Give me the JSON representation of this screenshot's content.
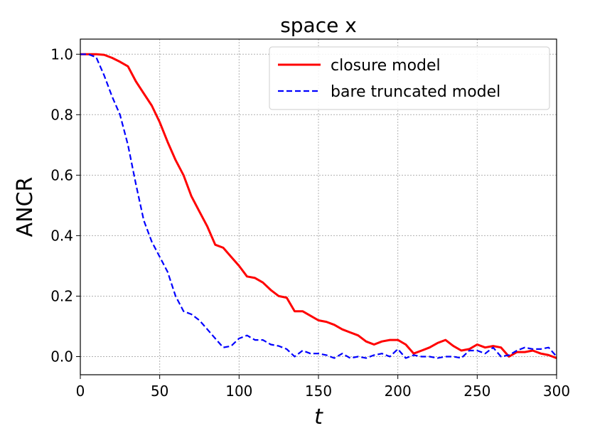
{
  "chart_data": {
    "type": "line",
    "title": "space x",
    "xlabel": "t",
    "ylabel": "ANCR",
    "xlim": [
      0,
      300
    ],
    "ylim": [
      -0.06,
      1.05
    ],
    "xticks": [
      0,
      50,
      100,
      150,
      200,
      250,
      300
    ],
    "yticks": [
      0.0,
      0.2,
      0.4,
      0.6,
      0.8,
      1.0
    ],
    "xtick_labels": [
      "0",
      "50",
      "100",
      "150",
      "200",
      "250",
      "300"
    ],
    "ytick_labels": [
      "0.0",
      "0.2",
      "0.4",
      "0.6",
      "0.8",
      "1.0"
    ],
    "grid": true,
    "legend_position": "top-right",
    "series": [
      {
        "name": "closure model",
        "color": "#ff0000",
        "style": "solid",
        "x": [
          0,
          5,
          10,
          15,
          20,
          25,
          30,
          35,
          40,
          45,
          50,
          55,
          60,
          65,
          70,
          75,
          80,
          85,
          90,
          95,
          100,
          105,
          110,
          115,
          120,
          125,
          130,
          135,
          140,
          145,
          150,
          155,
          160,
          165,
          170,
          175,
          180,
          185,
          190,
          195,
          200,
          205,
          210,
          215,
          220,
          225,
          230,
          235,
          240,
          245,
          250,
          255,
          260,
          265,
          270,
          275,
          280,
          285,
          290,
          295,
          300
        ],
        "values": [
          1.0,
          1.0,
          1.0,
          0.998,
          0.988,
          0.975,
          0.96,
          0.91,
          0.87,
          0.83,
          0.775,
          0.71,
          0.65,
          0.6,
          0.53,
          0.48,
          0.43,
          0.37,
          0.36,
          0.33,
          0.3,
          0.265,
          0.26,
          0.245,
          0.22,
          0.2,
          0.195,
          0.15,
          0.15,
          0.135,
          0.12,
          0.115,
          0.105,
          0.09,
          0.08,
          0.07,
          0.05,
          0.04,
          0.05,
          0.055,
          0.055,
          0.04,
          0.01,
          0.02,
          0.03,
          0.045,
          0.055,
          0.035,
          0.02,
          0.025,
          0.04,
          0.03,
          0.035,
          0.03,
          0.0,
          0.015,
          0.015,
          0.02,
          0.01,
          0.005,
          -0.005
        ]
      },
      {
        "name": "bare truncated model",
        "color": "#0000ff",
        "style": "dashed",
        "x": [
          0,
          5,
          10,
          15,
          20,
          25,
          30,
          35,
          40,
          45,
          50,
          55,
          60,
          65,
          70,
          75,
          80,
          85,
          90,
          95,
          100,
          105,
          110,
          115,
          120,
          125,
          130,
          135,
          140,
          145,
          150,
          155,
          160,
          165,
          170,
          175,
          180,
          185,
          190,
          195,
          200,
          205,
          210,
          215,
          220,
          225,
          230,
          235,
          240,
          245,
          250,
          255,
          260,
          265,
          270,
          275,
          280,
          285,
          290,
          295,
          300
        ],
        "values": [
          1.0,
          1.0,
          0.99,
          0.93,
          0.86,
          0.8,
          0.7,
          0.57,
          0.45,
          0.38,
          0.33,
          0.28,
          0.2,
          0.15,
          0.14,
          0.12,
          0.09,
          0.06,
          0.03,
          0.035,
          0.06,
          0.07,
          0.055,
          0.055,
          0.04,
          0.035,
          0.025,
          0.0,
          0.02,
          0.01,
          0.01,
          0.005,
          -0.005,
          0.01,
          -0.005,
          0.0,
          -0.005,
          0.005,
          0.01,
          0.0,
          0.025,
          -0.005,
          0.005,
          0.0,
          0.0,
          -0.005,
          0.0,
          0.0,
          -0.005,
          0.02,
          0.02,
          0.01,
          0.03,
          0.0,
          0.005,
          0.02,
          0.03,
          0.025,
          0.025,
          0.03,
          0.0
        ]
      }
    ]
  }
}
